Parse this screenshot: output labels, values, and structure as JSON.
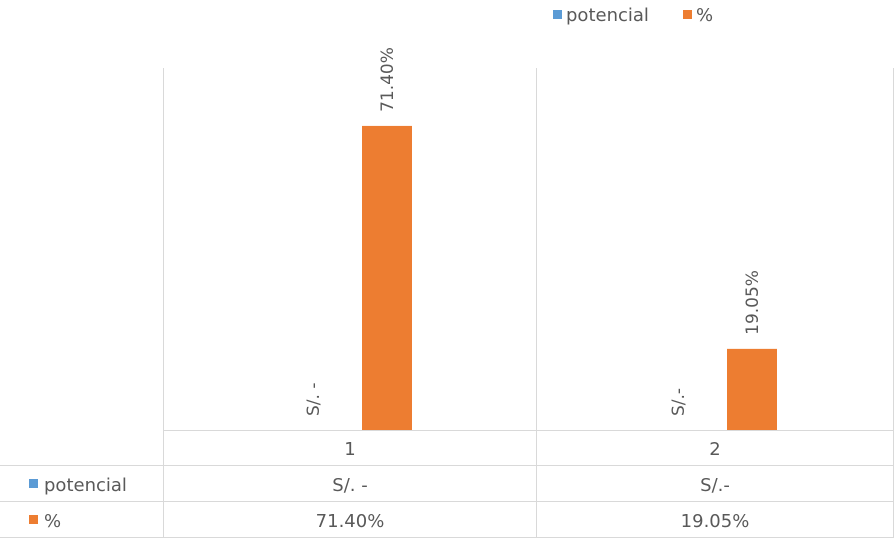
{
  "chart_data": {
    "type": "bar",
    "categories": [
      "1",
      "2"
    ],
    "series": [
      {
        "name": "potencial",
        "values": [
          0,
          0
        ],
        "labels": [
          "S/. -",
          "S/.-"
        ],
        "color": "#5B9BD5"
      },
      {
        "name": "%",
        "values": [
          71.4,
          19.05
        ],
        "labels": [
          "71.40%",
          "19.05%"
        ],
        "color": "#ED7D31"
      }
    ],
    "ylim": [
      0,
      85
    ],
    "grid": false,
    "legend_position": "top-right",
    "data_table": true,
    "data_table_rows": [
      {
        "series": "potencial",
        "cells": [
          "S/. -",
          "S/.-"
        ]
      },
      {
        "series": "%",
        "cells": [
          "71.40%",
          "19.05%"
        ]
      }
    ]
  }
}
